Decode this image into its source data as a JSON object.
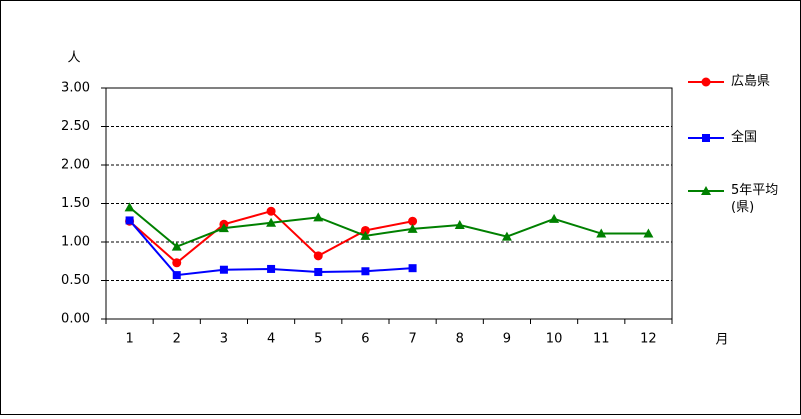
{
  "chart_data": {
    "type": "line",
    "y_label": "人",
    "x_label": "月",
    "categories": [
      "1",
      "2",
      "3",
      "4",
      "5",
      "6",
      "7",
      "8",
      "9",
      "10",
      "11",
      "12"
    ],
    "series": [
      {
        "name": "広島県",
        "color": "#ff0000",
        "marker": "circle",
        "values": [
          1.27,
          0.73,
          1.23,
          1.4,
          0.82,
          1.15,
          1.27,
          null,
          null,
          null,
          null,
          null
        ]
      },
      {
        "name": "全国",
        "color": "#0000ff",
        "marker": "square",
        "values": [
          1.28,
          0.57,
          0.64,
          0.65,
          0.61,
          0.62,
          0.66,
          null,
          null,
          null,
          null,
          null
        ]
      },
      {
        "name": "5年平均(県)",
        "color": "#008000",
        "marker": "triangle",
        "values": [
          1.45,
          0.94,
          1.18,
          1.25,
          1.32,
          1.08,
          1.17,
          1.22,
          1.07,
          1.3,
          1.11,
          1.11
        ]
      }
    ],
    "ylim": [
      0,
      3
    ],
    "yticks": [
      {
        "value": 0,
        "label": "0.00"
      },
      {
        "value": 0.5,
        "label": "0.50"
      },
      {
        "value": 1,
        "label": "1.00"
      },
      {
        "value": 1.5,
        "label": "1.50"
      },
      {
        "value": 2,
        "label": "2.00"
      },
      {
        "value": 2.5,
        "label": "2.50"
      },
      {
        "value": 3,
        "label": "3.00"
      }
    ],
    "grid": true,
    "legend": "right"
  }
}
